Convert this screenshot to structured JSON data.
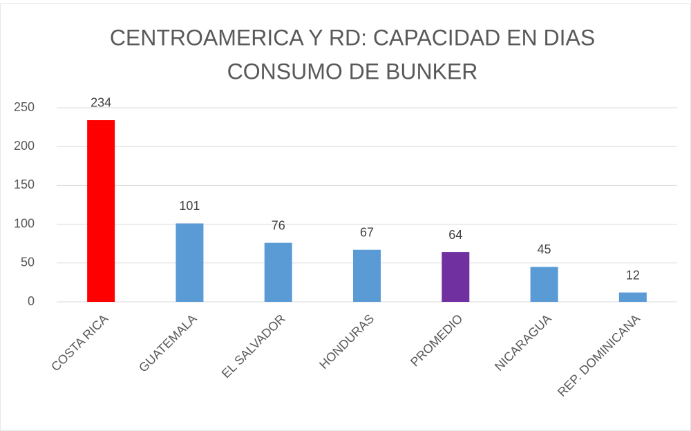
{
  "chart_data": {
    "type": "bar",
    "title": [
      "CENTROAMERICA Y RD: CAPACIDAD EN DIAS",
      "CONSUMO DE BUNKER"
    ],
    "categories": [
      "COSTA RICA",
      "GUATEMALA",
      "EL SALVADOR",
      "HONDURAS",
      "PROMEDIO",
      "NICARAGUA",
      "REP. DOMINICANA"
    ],
    "values": [
      234,
      101,
      76,
      67,
      64,
      45,
      12
    ],
    "colors": [
      "#ff0000",
      "#5b9bd5",
      "#5b9bd5",
      "#5b9bd5",
      "#7030a0",
      "#5b9bd5",
      "#5b9bd5"
    ],
    "ylim": [
      0,
      250
    ],
    "yticks": [
      0,
      50,
      100,
      150,
      200,
      250
    ],
    "grid": true
  }
}
